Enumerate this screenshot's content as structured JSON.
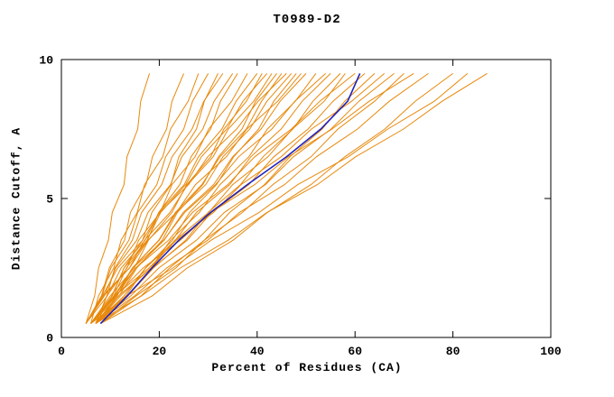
{
  "title": "T0989-D2",
  "axes": {
    "x_label": "Percent of Residues (CA)",
    "y_label": "Distance Cutoff, A"
  },
  "colors": {
    "model_curve": "#E8890C",
    "highlight_curve": "#2222BB",
    "axis": "#000000",
    "background": "#FFFFFF"
  },
  "chart_data": {
    "type": "line",
    "title": "T0989-D2",
    "xlabel": "Percent of Residues (CA)",
    "ylabel": "Distance Cutoff, A",
    "xlim": [
      0,
      100
    ],
    "ylim": [
      0,
      10
    ],
    "x_ticks": [
      0,
      20,
      40,
      60,
      80,
      100
    ],
    "y_ticks": [
      0,
      5,
      10
    ],
    "grid": false,
    "legend": "none",
    "y_points": [
      0.5,
      1.5,
      2.5,
      3.5,
      4.5,
      5.5,
      6.5,
      7.5,
      8.5,
      9.5
    ],
    "orange_curves_x": [
      [
        5,
        6.8,
        7.6,
        9.6,
        10.4,
        12.8,
        13.4,
        15.6,
        16.2,
        18
      ],
      [
        5,
        8.2,
        9.8,
        12.9,
        14.1,
        17.3,
        18.6,
        21.5,
        22.6,
        25
      ],
      [
        6,
        7.6,
        10.7,
        12.2,
        15.5,
        17,
        20.7,
        22.3,
        25.9,
        28
      ],
      [
        5,
        8.3,
        10.1,
        13.8,
        15.6,
        19.5,
        21.3,
        25,
        26.8,
        30
      ],
      [
        6,
        10.4,
        12.8,
        16.6,
        18.5,
        22.4,
        24,
        27.6,
        29.2,
        32
      ],
      [
        7,
        9.3,
        10.9,
        14.5,
        16.4,
        20.5,
        22.6,
        26.7,
        29.1,
        33
      ],
      [
        5,
        8.8,
        11.1,
        15.4,
        17.7,
        22.3,
        24.6,
        28.9,
        31.2,
        35
      ],
      [
        6,
        10.7,
        13.3,
        17.6,
        19.9,
        24.2,
        26.5,
        30.5,
        32.5,
        36
      ],
      [
        7,
        9.3,
        13.4,
        15.8,
        20.2,
        22.6,
        27.3,
        30.1,
        34.8,
        38
      ],
      [
        5,
        9.4,
        12.2,
        17.1,
        19.9,
        25.1,
        28,
        32.8,
        35.7,
        40
      ],
      [
        6,
        10,
        14.9,
        17.8,
        22.6,
        25.6,
        30.5,
        33.2,
        37.8,
        41
      ],
      [
        7,
        10.3,
        12.8,
        17.5,
        20.3,
        25.4,
        28.6,
        33.8,
        37.1,
        42
      ],
      [
        5,
        8.7,
        13.9,
        17,
        22.2,
        25.8,
        31,
        34.1,
        39.3,
        43
      ],
      [
        6,
        11.8,
        15.4,
        20.6,
        23.7,
        28.9,
        32.1,
        36.9,
        39.7,
        44
      ],
      [
        7,
        11.4,
        14.5,
        19.9,
        23.3,
        28.7,
        32.4,
        37.8,
        40.9,
        45
      ],
      [
        5,
        8.4,
        11.5,
        16.6,
        20.1,
        26,
        29.9,
        35.8,
        40.2,
        46
      ],
      [
        6,
        11,
        14.5,
        20,
        23.5,
        29.5,
        33,
        38.5,
        42,
        47
      ],
      [
        7,
        13.2,
        17.2,
        22.7,
        26.2,
        31.7,
        35.2,
        40.3,
        43.4,
        48
      ],
      [
        5,
        8.5,
        13.9,
        17.7,
        23.5,
        27.4,
        33.7,
        37.9,
        44.2,
        49
      ],
      [
        6,
        11.3,
        15.2,
        21,
        24.9,
        31.1,
        35,
        40.8,
        44.7,
        50
      ],
      [
        7,
        12.1,
        18.3,
        22.3,
        28.2,
        32.4,
        38.3,
        42.1,
        47.8,
        52
      ],
      [
        6,
        10.8,
        14.6,
        20.9,
        25.2,
        31.5,
        36.2,
        43,
        47.7,
        54
      ],
      [
        7,
        12.8,
        17.2,
        23.3,
        27.6,
        34.4,
        38.7,
        44.9,
        49.2,
        55
      ],
      [
        6,
        13.6,
        18.8,
        25.4,
        30,
        36.6,
        41.2,
        47.3,
        51.4,
        57
      ],
      [
        7,
        11.7,
        18.3,
        23.2,
        30.1,
        35,
        42.2,
        47.2,
        53.7,
        58
      ],
      [
        6,
        10.8,
        15.2,
        21.9,
        26.8,
        34,
        39.5,
        47,
        52.8,
        60
      ],
      [
        7,
        13.6,
        18.6,
        25.7,
        30.7,
        38.3,
        43.4,
        50.4,
        55.5,
        62
      ],
      [
        8,
        16.3,
        22.1,
        29.2,
        34.4,
        41.5,
        46.7,
        53.3,
        57.9,
        64
      ],
      [
        6,
        10.9,
        17.9,
        23.5,
        31.1,
        36.7,
        44.9,
        51.1,
        59.3,
        66
      ],
      [
        7,
        14.2,
        19.9,
        27.6,
        33.3,
        41.7,
        47.4,
        55.1,
        60.8,
        68
      ],
      [
        8,
        15.3,
        23.4,
        29.2,
        37,
        43.2,
        51,
        56.5,
        64,
        70
      ],
      [
        6,
        11.1,
        16.7,
        24.3,
        30.6,
        39.5,
        46.4,
        55.3,
        62.9,
        72
      ],
      [
        7,
        15,
        21.5,
        29.9,
        36.4,
        45.6,
        52.1,
        60.5,
        67,
        75
      ],
      [
        8,
        18.6,
        25.7,
        35.1,
        42.1,
        51,
        57.9,
        66.1,
        72.3,
        80
      ],
      [
        6,
        13.4,
        22.8,
        30.6,
        40.4,
        48.3,
        58.6,
        66.7,
        76.2,
        83
      ],
      [
        7,
        16.4,
        24.3,
        34.1,
        42,
        52.3,
        60.1,
        69.9,
        77.8,
        87
      ]
    ],
    "blue_curve_x": [
      8,
      13.5,
      18.5,
      24,
      30.5,
      38,
      46,
      53,
      58.5,
      61
    ]
  }
}
